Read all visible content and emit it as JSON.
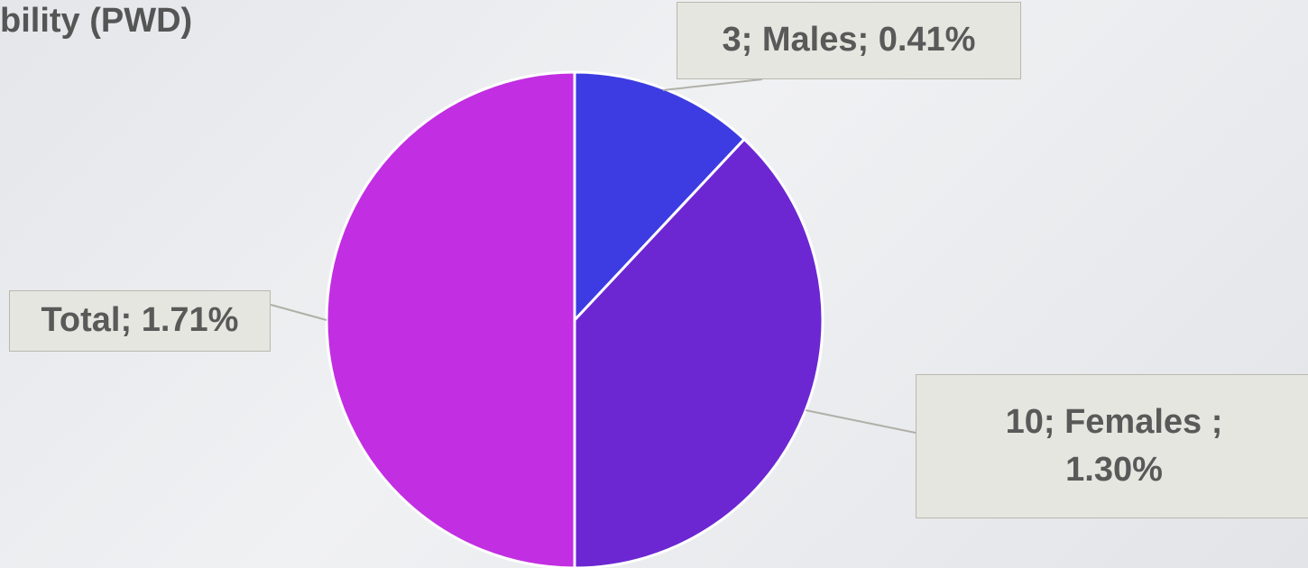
{
  "chart_data": {
    "type": "pie",
    "title": "bility  (PWD)",
    "values": [
      0.41,
      1.3,
      1.71
    ],
    "value_labels": [
      "3; Males; 0.41%",
      "10; Females ; 1.30%",
      "Total; 1.71%"
    ],
    "colors": [
      "#3c3ce2",
      "#6c27d2",
      "#c22ee2"
    ]
  }
}
